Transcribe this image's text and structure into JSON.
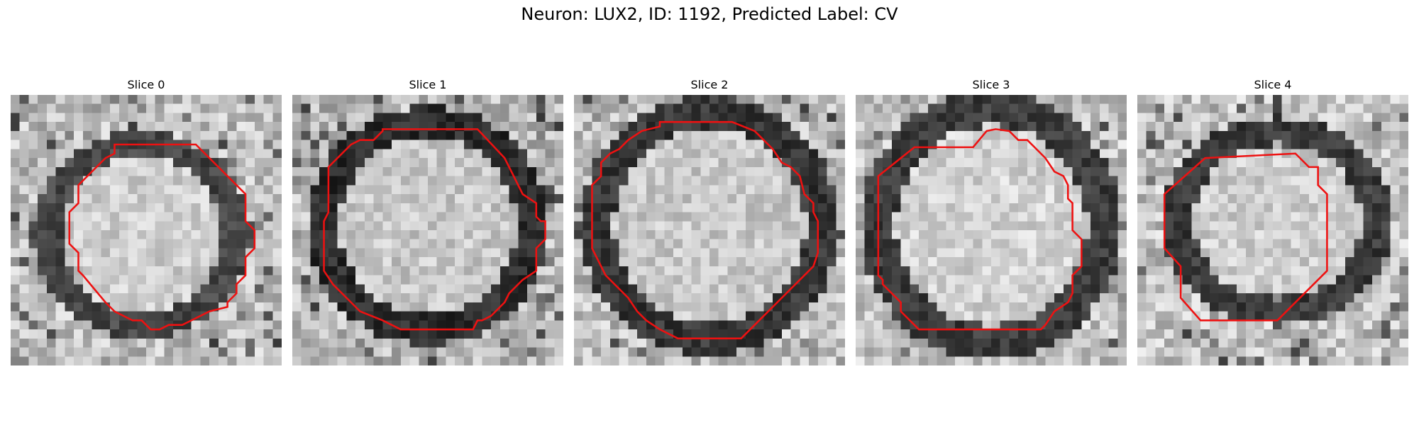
{
  "figure": {
    "title": "Neuron: LUX2, ID: 1192, Predicted Label: CV"
  },
  "outline_color": "#ee1111",
  "panels": [
    {
      "title": "Slice 0",
      "grid_size": 30,
      "seed": 11,
      "base": 190,
      "edge": 70,
      "inner": 205,
      "ring_center": [
        14.5,
        15.5
      ],
      "ring_radius": [
        10.5,
        10.0
      ],
      "contour": [
        [
          11.5,
          5.5
        ],
        [
          20.5,
          5.5
        ],
        [
          26,
          11
        ],
        [
          26,
          14
        ],
        [
          27,
          15
        ],
        [
          27,
          17
        ],
        [
          26,
          18
        ],
        [
          26,
          20
        ],
        [
          25,
          21
        ],
        [
          25,
          22
        ],
        [
          24,
          23
        ],
        [
          24,
          23.5
        ],
        [
          22,
          24
        ],
        [
          20,
          25
        ],
        [
          19,
          25.5
        ],
        [
          17.5,
          25.5
        ],
        [
          16.5,
          26
        ],
        [
          15.5,
          26
        ],
        [
          14.5,
          25
        ],
        [
          13.5,
          25
        ],
        [
          12.5,
          24.5
        ],
        [
          11.5,
          24
        ],
        [
          10.5,
          23
        ],
        [
          8,
          20
        ],
        [
          7.5,
          19.5
        ],
        [
          7.5,
          17.5
        ],
        [
          6.5,
          16.5
        ],
        [
          6.5,
          13
        ],
        [
          7.5,
          12
        ],
        [
          7.5,
          10
        ],
        [
          8.5,
          9
        ],
        [
          9.5,
          8
        ],
        [
          10.5,
          7
        ],
        [
          11.5,
          6.5
        ]
      ]
    },
    {
      "title": "Slice 1",
      "grid_size": 30,
      "seed": 23,
      "base": 185,
      "edge": 45,
      "inner": 200,
      "ring_center": [
        15,
        14.5
      ],
      "ring_radius": [
        11.5,
        11.5
      ],
      "contour": [
        [
          10,
          3.8
        ],
        [
          20.5,
          3.8
        ],
        [
          23.5,
          7
        ],
        [
          24.5,
          9
        ],
        [
          25.5,
          11
        ],
        [
          27,
          12
        ],
        [
          27,
          13.5
        ],
        [
          27.5,
          14
        ],
        [
          28,
          14
        ],
        [
          28,
          16
        ],
        [
          27,
          17
        ],
        [
          27,
          19.5
        ],
        [
          25.5,
          20.5
        ],
        [
          24,
          22
        ],
        [
          23.5,
          23
        ],
        [
          22.5,
          24
        ],
        [
          22,
          24.5
        ],
        [
          21,
          25
        ],
        [
          20.5,
          25
        ],
        [
          20,
          26
        ],
        [
          12,
          26
        ],
        [
          10,
          25
        ],
        [
          7.5,
          24
        ],
        [
          6,
          22.5
        ],
        [
          4.5,
          21
        ],
        [
          3.5,
          19.5
        ],
        [
          3.5,
          14
        ],
        [
          4,
          13
        ],
        [
          4,
          8
        ],
        [
          5,
          7
        ],
        [
          5.5,
          6.5
        ],
        [
          6.5,
          5.5
        ],
        [
          7.5,
          5
        ],
        [
          9,
          5
        ],
        [
          10,
          4
        ]
      ]
    },
    {
      "title": "Slice 2",
      "grid_size": 30,
      "seed": 37,
      "base": 190,
      "edge": 55,
      "inner": 200,
      "ring_center": [
        15,
        14.5
      ],
      "ring_radius": [
        12.5,
        12.5
      ],
      "contour": [
        [
          9.5,
          3
        ],
        [
          17.5,
          3
        ],
        [
          20,
          4
        ],
        [
          21,
          5
        ],
        [
          22,
          6
        ],
        [
          23,
          7.5
        ],
        [
          24,
          8
        ],
        [
          25,
          9
        ],
        [
          25.5,
          11
        ],
        [
          26.5,
          12
        ],
        [
          26.5,
          13
        ],
        [
          27,
          14
        ],
        [
          27,
          17.5
        ],
        [
          26.5,
          19
        ],
        [
          25.5,
          20
        ],
        [
          24.5,
          21
        ],
        [
          23.5,
          22
        ],
        [
          22.5,
          23
        ],
        [
          21.5,
          24
        ],
        [
          20.5,
          25
        ],
        [
          19.5,
          26
        ],
        [
          18.5,
          27
        ],
        [
          11.5,
          27
        ],
        [
          9.5,
          26
        ],
        [
          8,
          25
        ],
        [
          7,
          24
        ],
        [
          6,
          22.5
        ],
        [
          5,
          21.5
        ],
        [
          3.5,
          20
        ],
        [
          2.5,
          18
        ],
        [
          2,
          17
        ],
        [
          2,
          10
        ],
        [
          3,
          9
        ],
        [
          3,
          7.5
        ],
        [
          4,
          6.5
        ],
        [
          5,
          6
        ],
        [
          6,
          5
        ],
        [
          7.5,
          4
        ],
        [
          9.5,
          3.5
        ]
      ]
    },
    {
      "title": "Slice 3",
      "grid_size": 30,
      "seed": 53,
      "base": 195,
      "edge": 60,
      "inner": 210,
      "ring_center": [
        15,
        14.5
      ],
      "ring_radius": [
        12.5,
        13.0
      ],
      "contour": [
        [
          6.5,
          5.8
        ],
        [
          13,
          5.8
        ],
        [
          14.5,
          4
        ],
        [
          15.5,
          3.8
        ],
        [
          17,
          4
        ],
        [
          18,
          5
        ],
        [
          19,
          5
        ],
        [
          20,
          6
        ],
        [
          21,
          7
        ],
        [
          22,
          8.5
        ],
        [
          23,
          9
        ],
        [
          23.5,
          10
        ],
        [
          23.5,
          11.5
        ],
        [
          24,
          12
        ],
        [
          24,
          15
        ],
        [
          25,
          16
        ],
        [
          25,
          19
        ],
        [
          24,
          20
        ],
        [
          24,
          22
        ],
        [
          23.5,
          23
        ],
        [
          22,
          24
        ],
        [
          21,
          25.5
        ],
        [
          20.5,
          26
        ],
        [
          7,
          26
        ],
        [
          5,
          24
        ],
        [
          5,
          23
        ],
        [
          4,
          22
        ],
        [
          3,
          21
        ],
        [
          3,
          20.5
        ],
        [
          2.5,
          20
        ],
        [
          2.5,
          9
        ]
      ]
    },
    {
      "title": "Slice 4",
      "grid_size": 30,
      "seed": 71,
      "base": 195,
      "edge": 60,
      "inner": 205,
      "ring_center": [
        15.5,
        14
      ],
      "ring_radius": [
        11.0,
        10.0
      ],
      "contour": [
        [
          7.5,
          7
        ],
        [
          17.5,
          6.5
        ],
        [
          18,
          7
        ],
        [
          19,
          8
        ],
        [
          20,
          8
        ],
        [
          20,
          10
        ],
        [
          21,
          11
        ],
        [
          21,
          19.5
        ],
        [
          15.5,
          25
        ],
        [
          7,
          25
        ],
        [
          4.8,
          22.5
        ],
        [
          4.8,
          19
        ],
        [
          3,
          17
        ],
        [
          3,
          11
        ]
      ]
    }
  ]
}
